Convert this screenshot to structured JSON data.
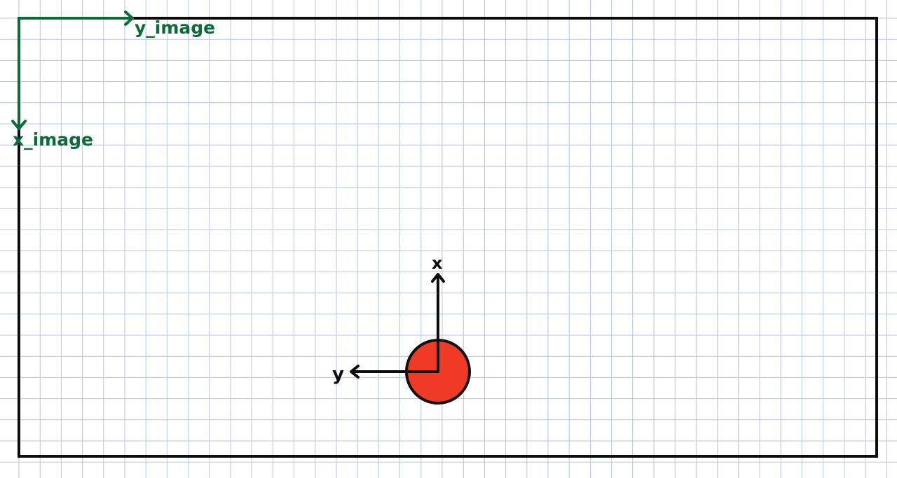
{
  "colors": {
    "paper": "#ffffff",
    "grid": "#b9c6dc",
    "ink": "#0d0d0d",
    "image_frame_axes": "#0c6b3a",
    "ball_fill": "#ef3a26",
    "ball_stroke": "#111111"
  },
  "image_frame": {
    "x_label": "x_image",
    "y_label": "y_image"
  },
  "object_frame": {
    "x_label": "x",
    "y_label": "y"
  },
  "object": {
    "shape": "circle",
    "icon": "red-ball-icon"
  }
}
